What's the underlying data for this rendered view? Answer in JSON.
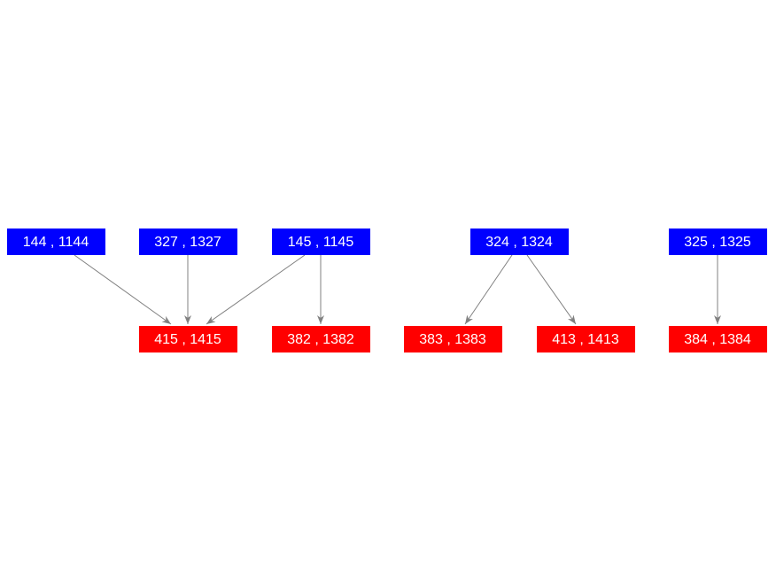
{
  "nodes": [
    {
      "label": "144 , 1144"
    },
    {
      "label": "327 , 1327"
    },
    {
      "label": "145 , 1145"
    },
    {
      "label": "324 , 1324"
    },
    {
      "label": "325 , 1325"
    },
    {
      "label": "415 , 1415"
    },
    {
      "label": "382 , 1382"
    },
    {
      "label": "383 , 1383"
    },
    {
      "label": "413 , 1413"
    },
    {
      "label": "384 , 1384"
    }
  ]
}
